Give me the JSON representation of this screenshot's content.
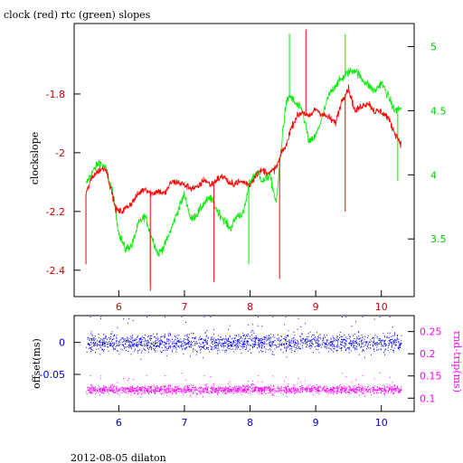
{
  "title": "clock (red) rtc (green) slopes",
  "footer": "2012-08-05 dilaton",
  "colors": {
    "clock": "#ff0000",
    "rtc": "#00ee00",
    "offset": "#0000ff",
    "rtt": "#ff00ff",
    "axis_left_top": "#cc0000",
    "axis_right_top": "#00cc00",
    "axis_bottom": "#0000cc"
  },
  "chart_data": [
    {
      "type": "line",
      "title": "clock (red) rtc (green) slopes",
      "ylabel": "clockslope",
      "xlim": [
        5.32,
        10.5
      ],
      "ylim": [
        -2.49,
        -1.56
      ],
      "y2lim": [
        3.05,
        5.18
      ],
      "xticks": [
        "6",
        "7",
        "8",
        "9",
        "10"
      ],
      "yticks": [
        "-1.8",
        "-2",
        "-2.2",
        "-2.4"
      ],
      "y2ticks": [
        "5",
        "4.5",
        "4",
        "3.5"
      ],
      "grid": false,
      "series": [
        {
          "name": "clock",
          "axis": "left",
          "x": [
            5.5,
            5.55,
            5.6,
            5.7,
            5.8,
            5.9,
            5.95,
            6.0,
            6.05,
            6.1,
            6.2,
            6.3,
            6.4,
            6.5,
            6.6,
            6.7,
            6.8,
            6.9,
            7.0,
            7.1,
            7.2,
            7.3,
            7.4,
            7.5,
            7.6,
            7.7,
            7.8,
            7.9,
            8.0,
            8.1,
            8.2,
            8.3,
            8.4,
            8.5,
            8.55,
            8.6,
            8.7,
            8.8,
            8.9,
            9.0,
            9.1,
            9.2,
            9.3,
            9.4,
            9.5,
            9.6,
            9.7,
            9.8,
            9.9,
            10.0,
            10.1,
            10.2,
            10.3
          ],
          "values": [
            -2.14,
            -2.11,
            -2.08,
            -2.06,
            -2.05,
            -2.14,
            -2.19,
            -2.2,
            -2.2,
            -2.19,
            -2.17,
            -2.14,
            -2.12,
            -2.14,
            -2.13,
            -2.14,
            -2.1,
            -2.1,
            -2.11,
            -2.12,
            -2.12,
            -2.09,
            -2.11,
            -2.09,
            -2.08,
            -2.11,
            -2.1,
            -2.1,
            -2.11,
            -2.07,
            -2.06,
            -2.07,
            -2.05,
            -1.99,
            -1.98,
            -1.93,
            -1.88,
            -1.86,
            -1.88,
            -1.85,
            -1.87,
            -1.88,
            -1.9,
            -1.82,
            -1.78,
            -1.86,
            -1.84,
            -1.83,
            -1.86,
            -1.86,
            -1.88,
            -1.93,
            -1.97
          ]
        },
        {
          "name": "rtc",
          "axis": "right",
          "x": [
            5.5,
            5.55,
            5.6,
            5.7,
            5.8,
            5.9,
            5.95,
            6.0,
            6.05,
            6.1,
            6.2,
            6.3,
            6.4,
            6.5,
            6.6,
            6.7,
            6.8,
            6.9,
            7.0,
            7.1,
            7.2,
            7.3,
            7.4,
            7.5,
            7.6,
            7.7,
            7.8,
            7.9,
            8.0,
            8.1,
            8.2,
            8.3,
            8.4,
            8.5,
            8.55,
            8.6,
            8.7,
            8.8,
            8.9,
            9.0,
            9.1,
            9.2,
            9.3,
            9.4,
            9.5,
            9.6,
            9.7,
            9.8,
            9.9,
            10.0,
            10.1,
            10.2,
            10.3
          ],
          "values": [
            3.92,
            3.98,
            4.02,
            4.1,
            4.05,
            3.88,
            3.72,
            3.55,
            3.48,
            3.42,
            3.45,
            3.62,
            3.68,
            3.52,
            3.38,
            3.45,
            3.58,
            3.72,
            3.85,
            3.65,
            3.7,
            3.78,
            3.82,
            3.72,
            3.65,
            3.58,
            3.68,
            3.7,
            3.95,
            4.02,
            3.95,
            4.0,
            3.78,
            4.35,
            4.55,
            4.62,
            4.55,
            4.5,
            4.25,
            4.3,
            4.45,
            4.62,
            4.7,
            4.75,
            4.8,
            4.82,
            4.75,
            4.7,
            4.65,
            4.72,
            4.62,
            4.5,
            4.52
          ]
        }
      ]
    },
    {
      "type": "scatter",
      "xlim": [
        5.32,
        10.5
      ],
      "ylim": [
        -0.108,
        0.042
      ],
      "y2lim": [
        0.07,
        0.286
      ],
      "ylabel": "offset(ms)",
      "y2label": "rnd-trip(ms)",
      "xticks": [
        "6",
        "7",
        "8",
        "9",
        "10"
      ],
      "yticks": [
        "0",
        "-0.05"
      ],
      "y2ticks": [
        "0.25",
        "0.2",
        "0.15",
        "0.1"
      ],
      "grid": false,
      "series": [
        {
          "name": "offset",
          "axis": "left",
          "x_range": [
            5.5,
            10.3
          ],
          "center": 0.0,
          "spread": 0.012
        },
        {
          "name": "rnd-trip",
          "axis": "right",
          "x_range": [
            5.5,
            10.3
          ],
          "center": 0.12,
          "spread": 0.008
        }
      ]
    }
  ]
}
